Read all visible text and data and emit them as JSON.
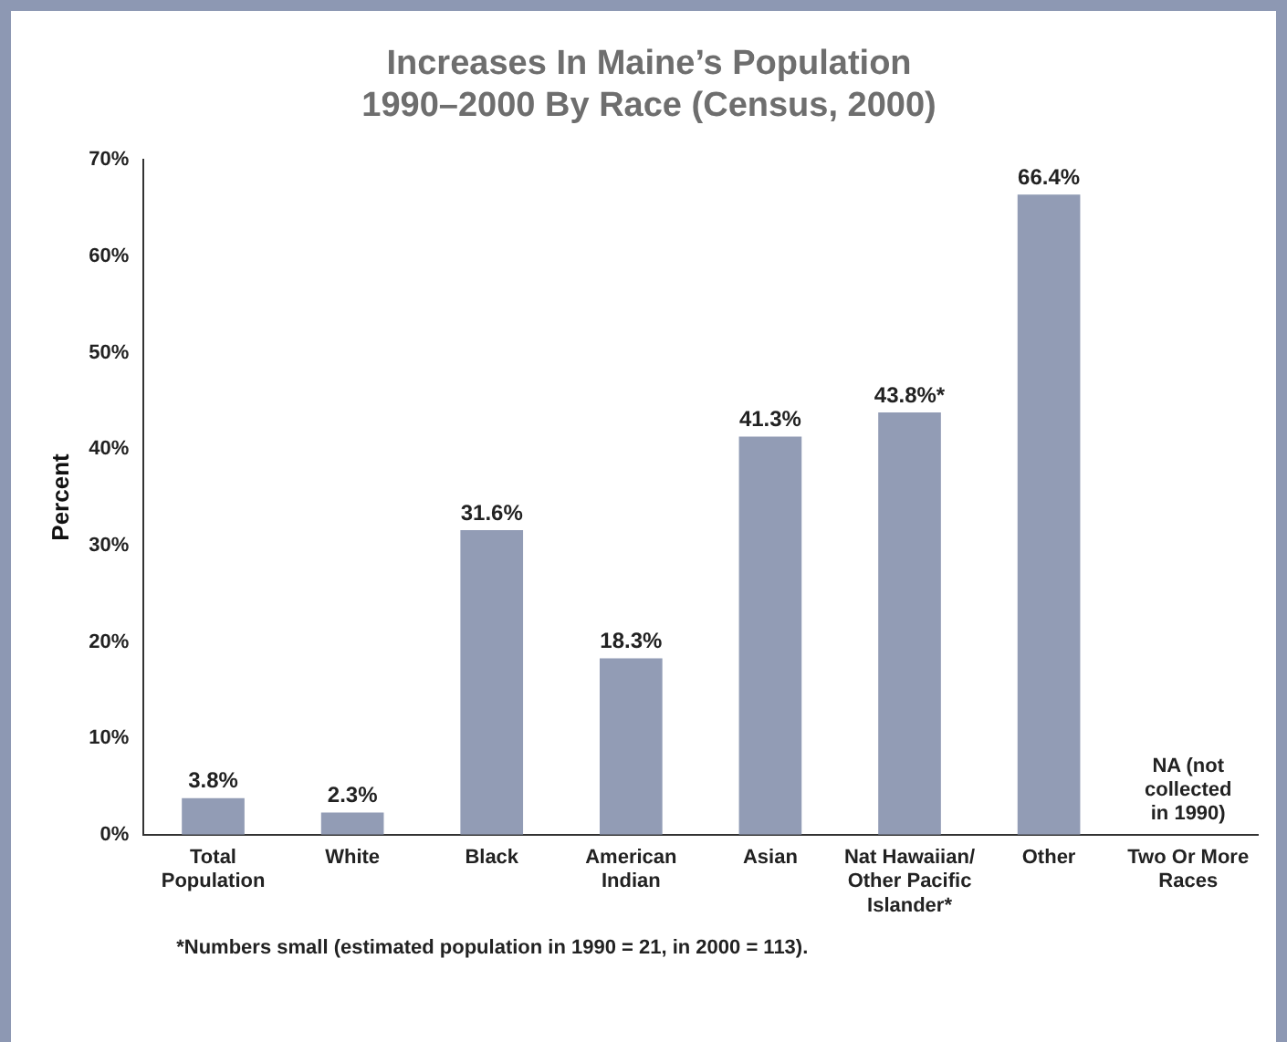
{
  "chart_data": {
    "type": "bar",
    "title": "Increases In Maine’s Population\n1990–2000 By Race (Census, 2000)",
    "ylabel": "Percent",
    "categories": [
      "Total Population",
      "White",
      "Black",
      "American Indian",
      "Asian",
      "Nat Hawaiian/ Other Pacific Islander*",
      "Other",
      "Two Or More Races"
    ],
    "values": [
      3.8,
      2.3,
      31.6,
      18.3,
      41.3,
      43.8,
      66.4,
      null
    ],
    "value_labels": [
      "3.8%",
      "2.3%",
      "31.6%",
      "18.3%",
      "41.3%",
      "43.8%*",
      "66.4%",
      null
    ],
    "color": "#929cb5",
    "ylim": [
      0,
      70
    ],
    "yticks": [
      {
        "value": 0,
        "label": "0%"
      },
      {
        "value": 10,
        "label": "10%"
      },
      {
        "value": 20,
        "label": "20%"
      },
      {
        "value": 30,
        "label": "30%"
      },
      {
        "value": 40,
        "label": "40%"
      },
      {
        "value": 50,
        "label": "50%"
      },
      {
        "value": 60,
        "label": "60%"
      },
      {
        "value": 70,
        "label": "70%"
      }
    ],
    "grid": false,
    "legend": false,
    "annotations": [
      "NA (not collected in 1990)",
      "*Numbers small (estimated population in 1990 = 21, in 2000 = 113)."
    ]
  }
}
